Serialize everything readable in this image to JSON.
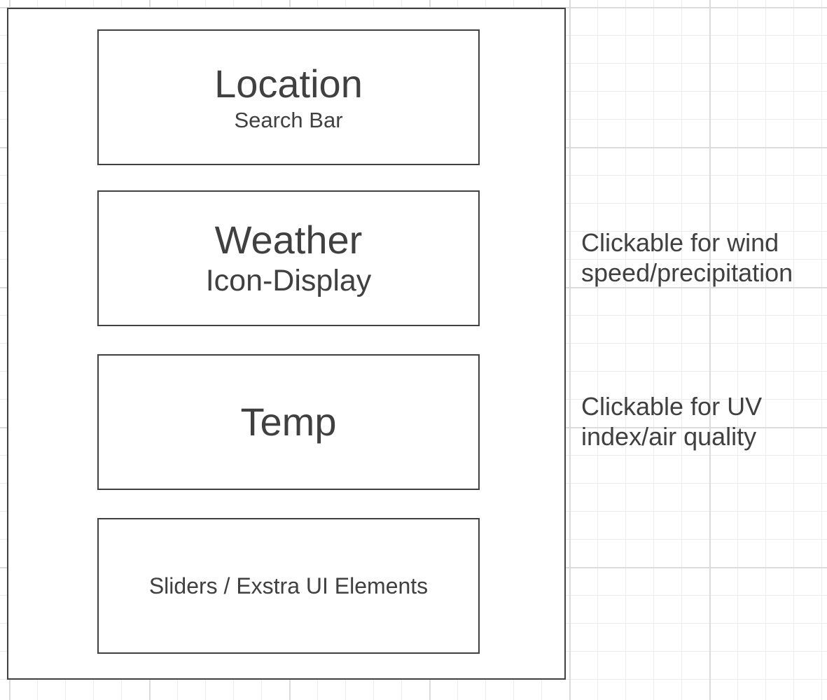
{
  "wireframe": {
    "location_block": {
      "title": "Location",
      "subtitle": "Search Bar"
    },
    "weather_block": {
      "title": "Weather",
      "subtitle": "Icon-Display"
    },
    "temp_block": {
      "title": "Temp"
    },
    "extras_block": {
      "label": "Sliders / Exstra UI Elements"
    }
  },
  "annotations": {
    "weather_note": "Clickable for wind\nspeed/precipitation",
    "temp_note": "Clickable for UV\nindex/air quality"
  },
  "colors": {
    "stroke": "#404040",
    "text": "#404040",
    "grid_major": "#dcdcdc",
    "grid_minor": "#ececec",
    "background": "#ffffff"
  }
}
